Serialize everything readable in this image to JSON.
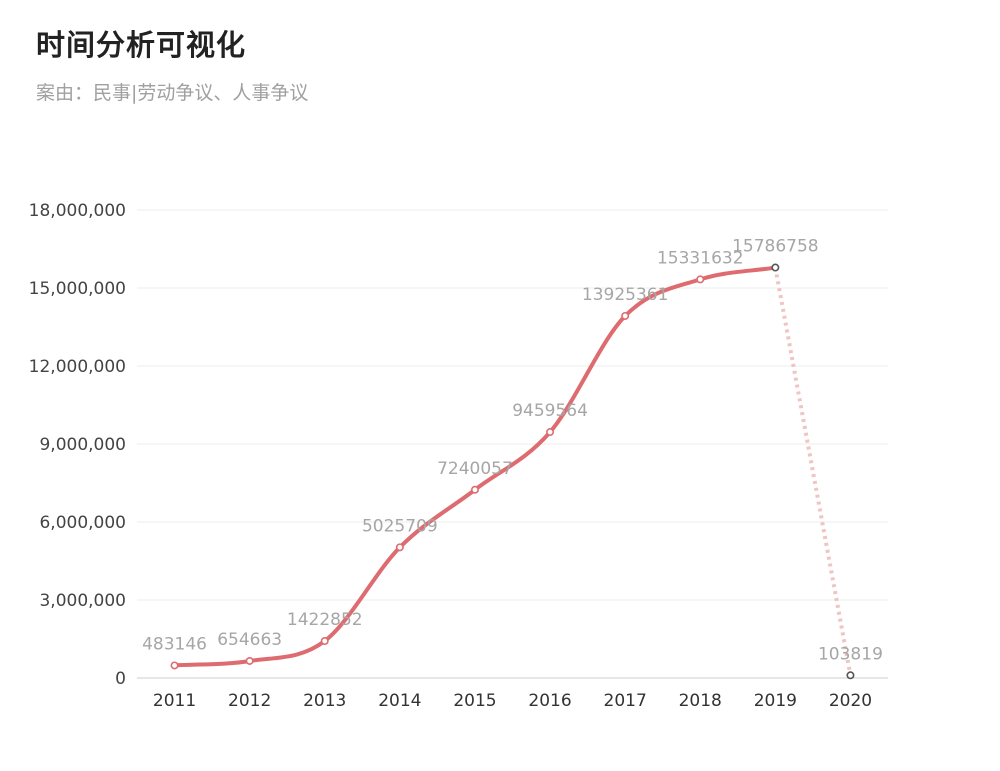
{
  "header": {
    "title": "时间分析可视化",
    "subtitle": "案由：民事|劳动争议、人事争议"
  },
  "colors": {
    "line": "#de6b6f",
    "dotted_segment": "#f0c4c2",
    "grid": "#eeeeee",
    "marker_fill": "#ffffff",
    "last_marker_stroke": "#555555"
  },
  "chart_data": {
    "type": "line",
    "title": "时间分析可视化",
    "subtitle": "案由：民事|劳动争议、人事争议",
    "xlabel": "",
    "ylabel": "",
    "categories": [
      "2011",
      "2012",
      "2013",
      "2014",
      "2015",
      "2016",
      "2017",
      "2018",
      "2019",
      "2020"
    ],
    "values": [
      483146,
      654663,
      1422852,
      5025709,
      7240057,
      9459564,
      13925361,
      15331632,
      15786758,
      103819
    ],
    "data_labels": [
      "483146",
      "654663",
      "1422852",
      "5025709",
      "7240057",
      "9459564",
      "13925361",
      "15331632",
      "15786758",
      "103819"
    ],
    "ylim": [
      0,
      18000000
    ],
    "yticks": [
      0,
      3000000,
      6000000,
      9000000,
      12000000,
      15000000,
      18000000
    ],
    "ytick_labels": [
      "0",
      "3,000,000",
      "6,000,000",
      "9,000,000",
      "12,000,000",
      "15,000,000",
      "18,000,000"
    ],
    "grid": true,
    "smooth": true,
    "dotted_last_segment": true,
    "legend": "none"
  }
}
